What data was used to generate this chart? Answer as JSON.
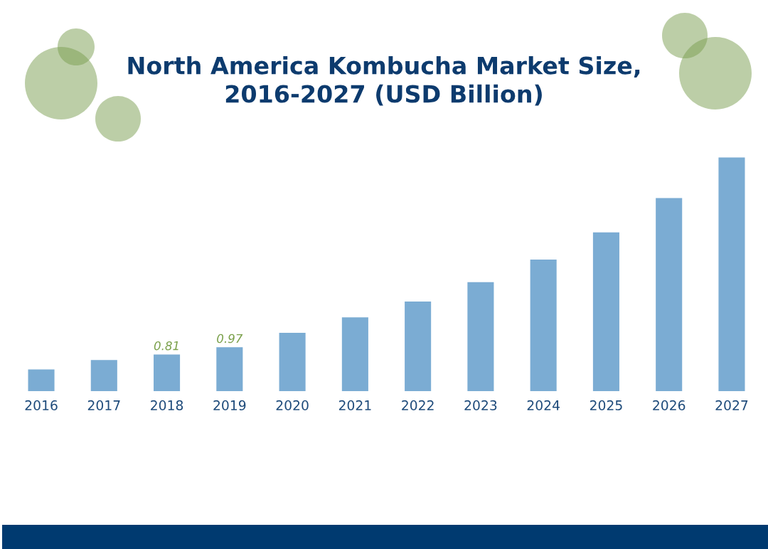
{
  "chart_data": {
    "type": "bar",
    "title": "North America Kombucha Market Size,\n2016-2027 (USD Billion)",
    "categories": [
      "2016",
      "2017",
      "2018",
      "2019",
      "2020",
      "2021",
      "2022",
      "2023",
      "2024",
      "2025",
      "2026",
      "2027"
    ],
    "values": [
      0.48,
      0.69,
      0.81,
      0.97,
      1.29,
      1.63,
      1.98,
      2.41,
      2.91,
      3.51,
      4.27,
      5.17
    ],
    "value_labels": [
      null,
      null,
      "0.81",
      "0.97",
      null,
      null,
      null,
      null,
      null,
      null,
      null,
      null
    ],
    "color": "#7bacd3",
    "tick_labels": "x"
  }
}
